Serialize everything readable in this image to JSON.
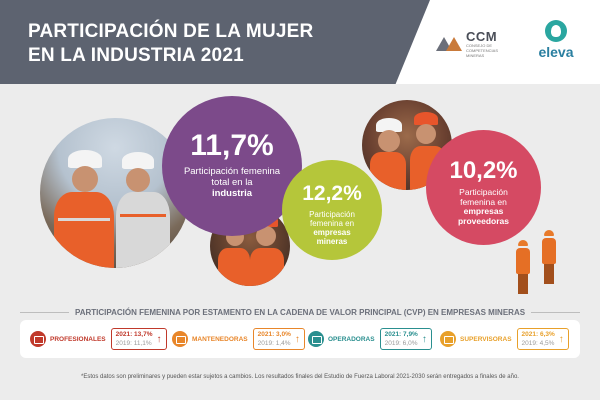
{
  "header": {
    "title_line1": "PARTICIPACIÓN DE LA MUJER",
    "title_line2": "EN LA INDUSTRIA 2021",
    "logo_ccm": "CCM",
    "logo_ccm_sub": "CONSEJO DE COMPETENCIAS MINERAS",
    "logo_eleva": "eleva"
  },
  "stats": [
    {
      "value": "11,7%",
      "text": "Participación femenina total en la",
      "bold": "industria",
      "color": "#7c4a8a"
    },
    {
      "value": "12,2%",
      "text": "Participación femenina en",
      "bold": "empresas mineras",
      "color": "#b5c63a"
    },
    {
      "value": "10,2%",
      "text": "Participación femenina en",
      "bold": "empresas proveedoras",
      "color": "#d54a63"
    }
  ],
  "cvp": {
    "title": "PARTICIPACIÓN FEMENINA POR ESTAMENTO EN LA CADENA DE VALOR PRINCIPAL (CVP) EN EMPRESAS MINERAS",
    "items": [
      {
        "label": "PROFESIONALES",
        "line1": "2021: 13,7%",
        "line2": "2019: 11,1%",
        "color": "#c0392b",
        "icon": "graduation-icon"
      },
      {
        "label": "MANTENEDORAS",
        "line1": "2021: 3,0%",
        "line2": "2019: 1,4%",
        "color": "#e8862a",
        "icon": "wrench-icon"
      },
      {
        "label": "OPERADORAS",
        "line1": "2021: 7,9%",
        "line2": "2019: 6,0%",
        "color": "#2a8f8f",
        "icon": "truck-icon"
      },
      {
        "label": "SUPERVISORAS",
        "line1": "2021: 6,3%",
        "line2": "2019: 4,5%",
        "color": "#e8a02a",
        "icon": "clipboard-icon"
      }
    ],
    "arrow": "↑"
  },
  "footnote": "*Estos datos son preliminares y pueden estar sujetos a cambios. Los resultados finales del Estudio de Fuerza Laboral 2021-2030 serán entregados a finales de año."
}
